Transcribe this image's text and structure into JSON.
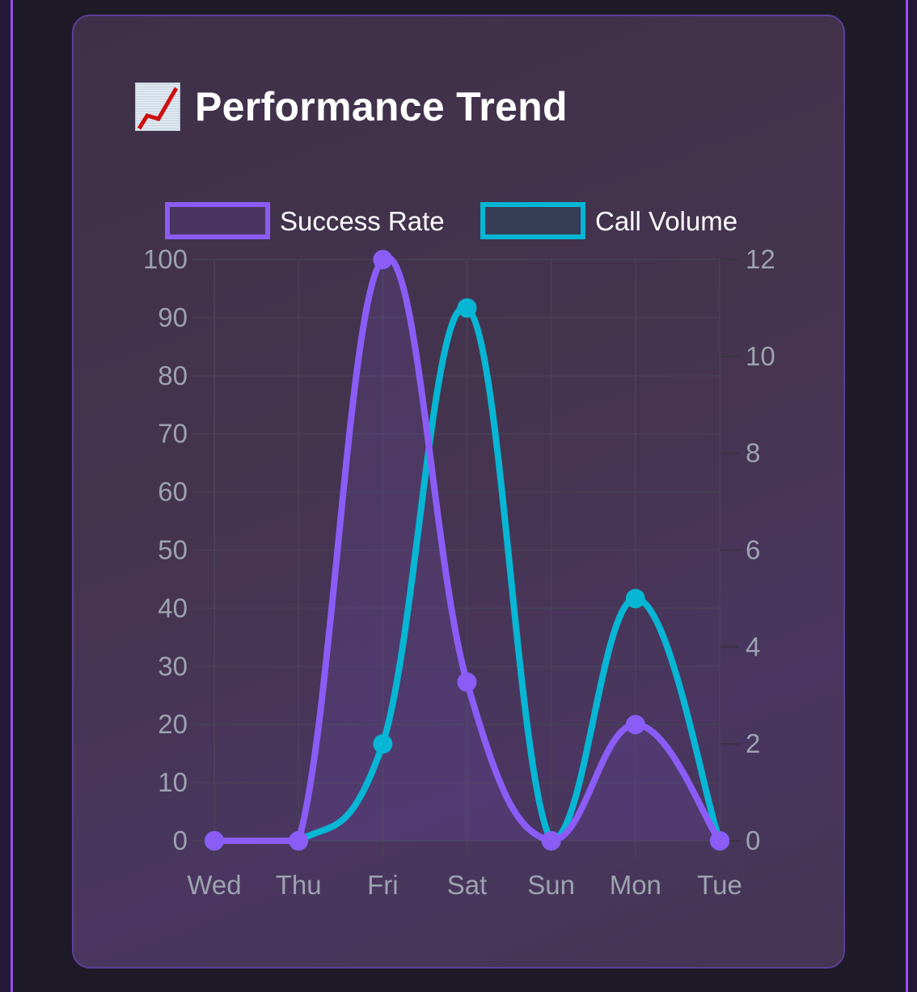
{
  "card": {
    "title": "Performance Trend",
    "title_icon": "chart-increasing-icon"
  },
  "colors": {
    "success_rate": "#8b5cf6",
    "call_volume": "#06b6d4",
    "grid": "#4a4458",
    "tick_text": "#9ca3af",
    "card_border": "#5b3f99",
    "accent_edge": "#9b4dee"
  },
  "legend": [
    {
      "label": "Success Rate",
      "color": "#8b5cf6"
    },
    {
      "label": "Call Volume",
      "color": "#06b6d4"
    }
  ],
  "chart_data": {
    "type": "line",
    "title": "Performance Trend",
    "categories": [
      "Wed",
      "Thu",
      "Fri",
      "Sat",
      "Sun",
      "Mon",
      "Tue"
    ],
    "series": [
      {
        "name": "Success Rate",
        "axis": "left",
        "values": [
          0,
          0,
          100,
          27.3,
          0,
          20,
          0
        ],
        "color": "#8b5cf6",
        "fill": true
      },
      {
        "name": "Call Volume",
        "axis": "right",
        "values": [
          0,
          0,
          2,
          11,
          0,
          5,
          0
        ],
        "color": "#06b6d4",
        "fill": true
      }
    ],
    "y_left": {
      "min": 0,
      "max": 100,
      "ticks": [
        "0",
        "10",
        "20",
        "30",
        "40",
        "50",
        "60",
        "70",
        "80",
        "90",
        "100"
      ]
    },
    "y_right": {
      "min": 0,
      "max": 12,
      "ticks": [
        "0",
        "2",
        "4",
        "6",
        "8",
        "10",
        "12"
      ]
    },
    "xlabel": "",
    "ylabel": "",
    "grid": true,
    "legend_position": "top",
    "smooth": true
  }
}
